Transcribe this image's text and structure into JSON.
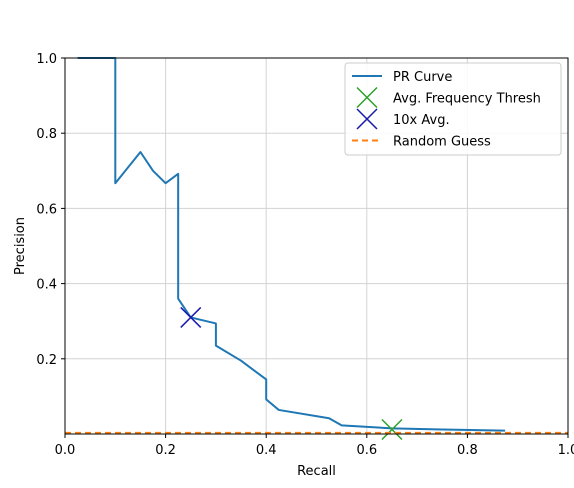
{
  "chart_data": {
    "type": "line",
    "title": "",
    "xlabel": "Recall",
    "ylabel": "Precision",
    "xlim": [
      0.0,
      1.0
    ],
    "ylim": [
      0.0,
      1.0
    ],
    "grid": true,
    "legend_position": "top-right",
    "x_ticks": [
      "0.0",
      "0.2",
      "0.4",
      "0.6",
      "0.8",
      "1.0"
    ],
    "y_ticks": [
      "0.2",
      "0.4",
      "0.6",
      "0.8",
      "1.0"
    ],
    "series": [
      {
        "name": "PR Curve",
        "style": "line",
        "color": "#1f77b4",
        "x": [
          0.025,
          0.1,
          0.1,
          0.15,
          0.175,
          0.2,
          0.225,
          0.225,
          0.25,
          0.3,
          0.3,
          0.35,
          0.4,
          0.4,
          0.425,
          0.525,
          0.55,
          0.65,
          0.75,
          0.875
        ],
        "y": [
          1.0,
          1.0,
          0.667,
          0.75,
          0.7,
          0.667,
          0.692,
          0.36,
          0.31,
          0.294,
          0.235,
          0.195,
          0.145,
          0.092,
          0.064,
          0.042,
          0.023,
          0.015,
          0.012,
          0.009
        ]
      },
      {
        "name": "Avg. Frequency Thresh",
        "style": "marker",
        "marker": "x",
        "color": "#2ca02c",
        "x": [
          0.65
        ],
        "y": [
          0.012
        ]
      },
      {
        "name": "10x Avg.",
        "style": "marker",
        "marker": "x",
        "color": "#1a1ab0",
        "x": [
          0.25
        ],
        "y": [
          0.31
        ]
      },
      {
        "name": "Random Guess",
        "style": "dashed",
        "color": "#ff7f0e",
        "x": [
          0.0,
          1.0
        ],
        "y": [
          0.003,
          0.003
        ]
      }
    ]
  }
}
